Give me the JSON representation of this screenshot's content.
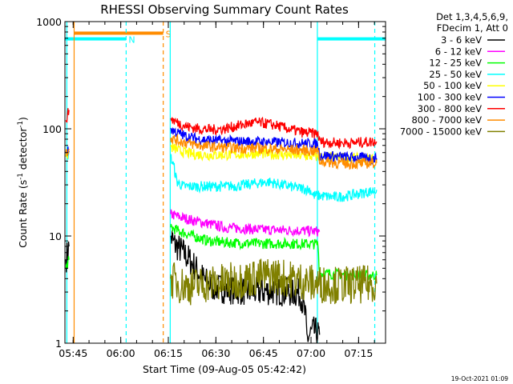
{
  "chart_data": {
    "type": "line",
    "title": "RHESSI Observing Summary Count Rates",
    "xlabel": "Start Time (09-Aug-05 05:42:42)",
    "ylabel_main": "Count Rate (s",
    "ylabel_sup1": "-1",
    "ylabel_mid": " detector",
    "ylabel_sup2": "-1",
    "ylabel_end": ")",
    "y_scale": "log",
    "ylim": [
      1,
      1000
    ],
    "xlim_minutes": [
      -0.3,
      100.8
    ],
    "x_ticks": [
      {
        "label": "05:45",
        "minutes": 2.3
      },
      {
        "label": "06:00",
        "minutes": 17.3
      },
      {
        "label": "06:15",
        "minutes": 32.3
      },
      {
        "label": "06:30",
        "minutes": 47.3
      },
      {
        "label": "06:45",
        "minutes": 62.3
      },
      {
        "label": "07:00",
        "minutes": 77.3
      },
      {
        "label": "07:15",
        "minutes": 92.3
      }
    ],
    "y_ticks": [
      {
        "label": "1",
        "value": 1
      },
      {
        "label": "10",
        "value": 10
      },
      {
        "label": "100",
        "value": 100
      },
      {
        "label": "1000",
        "value": 1000
      }
    ],
    "legend_header": [
      "Det 1,3,4,5,6,9,",
      "FDecim 1, Att 0"
    ],
    "legend_position": "right",
    "series": [
      {
        "name": "3 - 6 keV",
        "color": "#000000",
        "x": [
          0,
          0.5,
          1,
          33,
          34,
          36,
          38,
          40,
          42,
          44,
          46,
          50,
          55,
          60,
          65,
          70,
          74,
          75.5,
          76,
          78,
          80
        ],
        "y": [
          6,
          7,
          8,
          10,
          8.5,
          7.5,
          6.5,
          5.5,
          4.5,
          3.8,
          3.4,
          3.2,
          3.1,
          3.0,
          3.1,
          3.0,
          2.9,
          1.8,
          1.1,
          1.3,
          1.2
        ]
      },
      {
        "name": "6 - 12 keV",
        "color": "#ff00ff",
        "x": [
          33,
          36,
          40,
          45,
          50,
          55,
          60,
          65,
          70,
          75,
          80
        ],
        "y": [
          16,
          15,
          14,
          13,
          12,
          11.8,
          11.5,
          11.4,
          11.3,
          11.2,
          11
        ]
      },
      {
        "name": "12 - 25 keV",
        "color": "#00ff00",
        "x": [
          0,
          1,
          33,
          36,
          40,
          45,
          50,
          60,
          70,
          79.5,
          80,
          90,
          98
        ],
        "y": [
          5,
          6,
          12,
          11,
          10,
          9,
          8.7,
          8.5,
          8.5,
          8.4,
          4.5,
          4.3,
          4.3
        ]
      },
      {
        "name": "25 - 50 keV",
        "color": "#00ffff",
        "x": [
          0,
          1,
          33,
          34,
          35,
          37,
          40,
          45,
          50,
          55,
          60,
          64,
          68,
          72,
          75,
          77,
          78,
          85,
          90,
          96,
          98
        ],
        "y": [
          55,
          58,
          55,
          45,
          32,
          29,
          29,
          29,
          29,
          29.5,
          31,
          32,
          30,
          28.5,
          27.5,
          27,
          24,
          23,
          24,
          26,
          27
        ]
      },
      {
        "name": "50 - 100 keV",
        "color": "#ffff00",
        "x": [
          0,
          1,
          33,
          36,
          40,
          45,
          50,
          55,
          60,
          65,
          70,
          75,
          78,
          85,
          92,
          98
        ],
        "y": [
          55,
          60,
          68,
          62,
          58,
          57,
          57,
          58,
          59,
          58,
          57,
          56,
          55,
          54,
          53,
          52
        ]
      },
      {
        "name": "100 - 300 keV",
        "color": "#0000ff",
        "x": [
          0,
          1,
          33,
          35,
          38,
          42,
          46,
          50,
          55,
          60,
          65,
          70,
          75,
          79.5,
          80,
          85,
          90,
          98
        ],
        "y": [
          60,
          62,
          100,
          92,
          85,
          80,
          78,
          77,
          76,
          76,
          75,
          74,
          73,
          72,
          57,
          55,
          54,
          53
        ]
      },
      {
        "name": "300 - 800 keV",
        "color": "#ff0000",
        "x": [
          0,
          1,
          33,
          35,
          38,
          42,
          46,
          50,
          55,
          60,
          63,
          66,
          70,
          75,
          79.5,
          80,
          85,
          90,
          98
        ],
        "y": [
          120,
          150,
          125,
          115,
          105,
          100,
          98,
          100,
          108,
          115,
          112,
          108,
          100,
          92,
          90,
          76,
          74,
          74,
          76
        ]
      },
      {
        "name": "800 - 7000 keV",
        "color": "#ff8c00",
        "x": [
          0,
          1,
          33,
          35,
          38,
          42,
          46,
          50,
          55,
          60,
          65,
          70,
          75,
          79.5,
          80,
          85,
          90,
          98
        ],
        "y": [
          60,
          65,
          82,
          78,
          74,
          70,
          68,
          67,
          66,
          66,
          65,
          64,
          63,
          62,
          50,
          48,
          47,
          48
        ]
      },
      {
        "name": "7000 - 15000 keV",
        "color": "#808000",
        "x": [
          33,
          36,
          40,
          45,
          50,
          55,
          60,
          65,
          70,
          75,
          78,
          85,
          92,
          98
        ],
        "y": [
          4.0,
          3.5,
          3.4,
          3.6,
          3.7,
          3.9,
          4.1,
          4.3,
          4.0,
          3.8,
          3.6,
          3.5,
          3.5,
          3.6
        ]
      }
    ],
    "flag_bars": [
      {
        "label": "S",
        "color": "#ff8c00",
        "x_start": 2.6,
        "x_end": 30.7,
        "value": 780
      },
      {
        "label": "N",
        "color": "#00ffff",
        "x_start": -0.3,
        "x_end": 19.0,
        "value": 690
      },
      {
        "label": "",
        "color": "#00ffff",
        "x_start": 79.3,
        "x_end": 100.8,
        "value": 690
      }
    ],
    "vertical_lines": [
      {
        "x": 0.3,
        "color": "#00ffff",
        "style": "solid"
      },
      {
        "x": 2.6,
        "color": "#ff8c00",
        "style": "solid"
      },
      {
        "x": 19.0,
        "color": "#00ffff",
        "style": "dashed"
      },
      {
        "x": 30.7,
        "color": "#ff8c00",
        "style": "dashed"
      },
      {
        "x": 32.9,
        "color": "#00ffff",
        "style": "solid"
      },
      {
        "x": 79.3,
        "color": "#00ffff",
        "style": "solid"
      },
      {
        "x": 97.4,
        "color": "#00ffff",
        "style": "dashed"
      }
    ]
  },
  "footer": {
    "timestamp": "19-Oct-2021 01:09"
  }
}
